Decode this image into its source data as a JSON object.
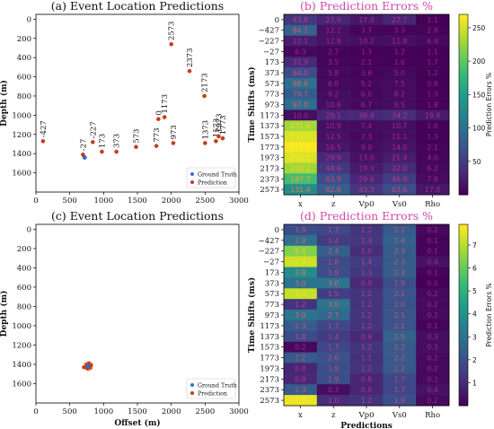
{
  "chart_data": [
    {
      "type": "scatter",
      "title": "(a) Event Location Predictions",
      "xlabel": "",
      "ylabel": "Depth (m)",
      "xlim": [
        0,
        3000
      ],
      "ylim": [
        1800,
        -50
      ],
      "xticks": [
        0,
        500,
        1000,
        1500,
        2000,
        2500,
        3000
      ],
      "yticks": [
        0,
        200,
        400,
        600,
        800,
        1000,
        1200,
        1400,
        1600
      ],
      "legend": {
        "position": "lower-right",
        "entries": [
          "Ground Truth",
          "Prediction"
        ]
      },
      "ground_truth": [
        {
          "x": 720,
          "y": 1440
        }
      ],
      "predictions": [
        {
          "label": "-427",
          "x": 105,
          "y": 1270
        },
        {
          "label": "-27",
          "x": 695,
          "y": 1410
        },
        {
          "label": "-227",
          "x": 840,
          "y": 1280
        },
        {
          "label": "173",
          "x": 975,
          "y": 1380
        },
        {
          "label": "373",
          "x": 1190,
          "y": 1380
        },
        {
          "label": "573",
          "x": 1480,
          "y": 1330
        },
        {
          "label": "773",
          "x": 1780,
          "y": 1320
        },
        {
          "label": "0",
          "x": 1810,
          "y": 1040
        },
        {
          "label": "1173",
          "x": 1900,
          "y": 1020
        },
        {
          "label": "973",
          "x": 2030,
          "y": 1290
        },
        {
          "label": "2573",
          "x": 2000,
          "y": 260
        },
        {
          "label": "2373",
          "x": 2270,
          "y": 540
        },
        {
          "label": "2173",
          "x": 2490,
          "y": 800
        },
        {
          "label": "1373",
          "x": 2500,
          "y": 1290
        },
        {
          "label": "1573",
          "x": 2660,
          "y": 1270
        },
        {
          "label": "1973",
          "x": 2700,
          "y": 1220
        },
        {
          "label": "1773",
          "x": 2760,
          "y": 1240
        }
      ]
    },
    {
      "type": "heatmap",
      "title": "(b) Prediction Errors %",
      "xlabel": "",
      "ylabel": "Time Shifts (ms)",
      "columns": [
        "x",
        "z",
        "Vp0",
        "Vs0",
        "Rho"
      ],
      "rows": [
        "0",
        "−427",
        "−227",
        "−27",
        "173",
        "373",
        "573",
        "773",
        "973",
        "1173",
        "1373",
        "1573",
        "1773",
        "1973",
        "2173",
        "2373",
        "2573"
      ],
      "values": [
        [
          43.8,
          27.9,
          17.9,
          27.7,
          1.1
        ],
        [
          84.1,
          12.2,
          3.7,
          3.3,
          2.8
        ],
        [
          22.1,
          12.8,
          10.2,
          11.8,
          6.9
        ],
        [
          6.3,
          2.7,
          1.3,
          1.2,
          1.1
        ],
        [
          31.9,
          3.5,
          2.1,
          1.6,
          1.7
        ],
        [
          64.0,
          5.8,
          3.6,
          5.0,
          1.2
        ],
        [
          98.6,
          6.8,
          5.2,
          7.5,
          0.8
        ],
        [
          79.7,
          9.2,
          6.0,
          8.2,
          1.3
        ],
        [
          97.0,
          10.6,
          6.7,
          9.5,
          1.8
        ],
        [
          10.0,
          29.1,
          30.4,
          34.2,
          19.8
        ],
        [
          231.6,
          10.9,
          7.4,
          10.7,
          1.6
        ],
        [
          255.4,
          12.5,
          7.3,
          11.1,
          1.3
        ],
        [
          267.9,
          16.5,
          9.0,
          14.0,
          2.1
        ],
        [
          256.2,
          29.9,
          13.0,
          21.4,
          4.0
        ],
        [
          230.2,
          44.6,
          19.3,
          32.0,
          6.2
        ],
        [
          187.7,
          63.9,
          29.6,
          46.9,
          7.8
        ],
        [
          131.4,
          82.6,
          43.3,
          63.6,
          17.0
        ]
      ],
      "colorbar": {
        "label": "Prediction Errors %",
        "min": 0,
        "max": 270,
        "ticks": [
          50,
          100,
          150,
          200,
          250
        ]
      }
    },
    {
      "type": "scatter",
      "title": "(c) Event Location Predictions",
      "xlabel": "Offset (m)",
      "ylabel": "Depth (m)",
      "xlim": [
        0,
        3000
      ],
      "ylim": [
        1800,
        -50
      ],
      "xticks": [
        0,
        500,
        1000,
        1500,
        2000,
        2500,
        3000
      ],
      "yticks": [
        0,
        200,
        400,
        600,
        800,
        1000,
        1200,
        1400,
        1600
      ],
      "legend": {
        "position": "lower-right",
        "entries": [
          "Ground Truth",
          "Prediction"
        ]
      },
      "ground_truth": [
        {
          "x": 770,
          "y": 1420
        }
      ],
      "predictions": [
        {
          "x": 780,
          "y": 1410
        },
        {
          "x": 800,
          "y": 1420
        },
        {
          "x": 760,
          "y": 1430
        },
        {
          "x": 745,
          "y": 1400
        },
        {
          "x": 790,
          "y": 1440
        },
        {
          "x": 815,
          "y": 1405
        },
        {
          "x": 770,
          "y": 1395
        },
        {
          "x": 735,
          "y": 1425
        },
        {
          "x": 805,
          "y": 1435
        },
        {
          "x": 765,
          "y": 1445
        },
        {
          "x": 785,
          "y": 1390
        },
        {
          "x": 750,
          "y": 1415
        },
        {
          "x": 795,
          "y": 1425
        },
        {
          "x": 775,
          "y": 1435
        },
        {
          "x": 810,
          "y": 1415
        },
        {
          "x": 755,
          "y": 1440
        },
        {
          "x": 710,
          "y": 1430
        }
      ]
    },
    {
      "type": "heatmap",
      "title": "(d) Prediction Errors %",
      "xlabel": "Predictions",
      "ylabel": "Time Shifts (ms)",
      "columns": [
        "x",
        "z",
        "Vp0",
        "Vs0",
        "Rho"
      ],
      "rows": [
        "0",
        "−427",
        "−227",
        "−27",
        "173",
        "373",
        "573",
        "773",
        "973",
        "1173",
        "1373",
        "1573",
        "1773",
        "1973",
        "2173",
        "2373",
        "2573"
      ],
      "values": [
        [
          1.9,
          1.7,
          1.2,
          2.2,
          0.2
        ],
        [
          2.9,
          1.4,
          1.3,
          2.4,
          0.1
        ],
        [
          6.4,
          2.4,
          1.0,
          2.3,
          0.1
        ],
        [
          7.3,
          1.8,
          1.4,
          2.3,
          0.4
        ],
        [
          3.8,
          1.9,
          1.3,
          2.3,
          0.1
        ],
        [
          3.0,
          3.0,
          0.9,
          1.9,
          0.0
        ],
        [
          7.2,
          1.5,
          1.2,
          2.1,
          0.2
        ],
        [
          1.2,
          3.0,
          1.2,
          2.0,
          0.2
        ],
        [
          3.0,
          2.7,
          1.2,
          2.1,
          0.2
        ],
        [
          2.3,
          1.7,
          1.2,
          2.1,
          0.1
        ],
        [
          1.8,
          1.4,
          0.9,
          2.5,
          0.3
        ],
        [
          0.2,
          1.7,
          1.2,
          2.2,
          0.3
        ],
        [
          2.2,
          2.0,
          1.1,
          2.2,
          0.2
        ],
        [
          0.8,
          1.9,
          1.2,
          2.2,
          0.2
        ],
        [
          0.9,
          1.9,
          0.8,
          1.7,
          0.2
        ],
        [
          2.3,
          0.3,
          0.8,
          1.7,
          0.4
        ],
        [
          7.7,
          1.0,
          1.2,
          1.9,
          0.2
        ]
      ],
      "colorbar": {
        "label": "Prediction Errors %",
        "min": 0,
        "max": 7.9,
        "ticks": [
          1,
          2,
          3,
          4,
          5,
          6,
          7
        ]
      }
    }
  ]
}
